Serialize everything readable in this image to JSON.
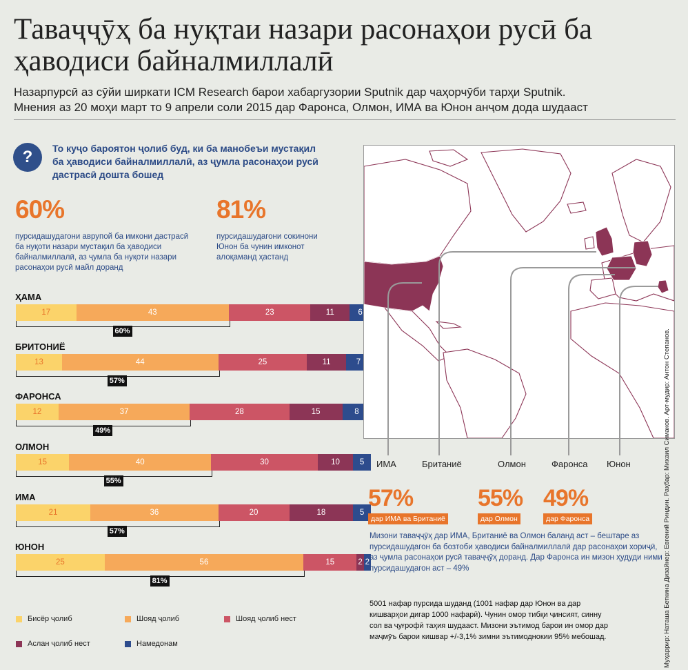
{
  "title": "Таваҷҷӯҳ ба нуқтаи назари расонаҳои русӣ ба ҳаводиси байналмиллалӣ",
  "subtitle_line1": "Назарпурсӣ аз сӯйи ширкати ICM Research барои хабаргузории Sputnik дар чаҳорчӯби тарҳи Sputnik.",
  "subtitle_line2": "Мнения аз 20 моҳи март то 9 апрели соли 2015 дар Фаронса, Олмон, ИМА ва Юнон анҷом дода шудааст",
  "question": {
    "icon": "question-mark-icon",
    "symbol": "?",
    "text": "То куҷо бароятон ҷолиб буд, ки ба манобеъи мустақил ба ҳаводиси байналмиллалӣ, аз ҷумла расонаҳои русӣ дастрасӣ дошта бошед"
  },
  "highlights": [
    {
      "value": "60%",
      "text": "пурсидашудагони аврупой ба имкони дастрасӣ ба нуқоти назари мустақил ба ҳаводиси байналмиллалӣ, аз ҷумла ба нуқоти назари расонаҳои русӣ  майл доранд"
    },
    {
      "value": "81%",
      "text": "пурсидашудагони сокинони Юнон ба чунин имконот алоқаманд ҳастанд"
    }
  ],
  "colors": {
    "very": "#fbd36a",
    "rather": "#f6a95a",
    "rather_not": "#cc5565",
    "not_at_all": "#8c3556",
    "dont_know": "#2d4c8d",
    "accent": "#e8752b",
    "blue_text": "#2b4a86"
  },
  "chart_data": {
    "type": "bar",
    "orientation": "horizontal",
    "stacked": true,
    "categories": [
      "ҲАМА",
      "БРИТОНИЁ",
      "ФАРОНСА",
      "ОЛМОН",
      "ИМА",
      "ЮНОН"
    ],
    "series": [
      {
        "name": "Бисёр ҷолиб",
        "key": "very",
        "values": [
          17,
          13,
          12,
          15,
          21,
          25
        ]
      },
      {
        "name": "Шояд ҷолиб",
        "key": "rather",
        "values": [
          43,
          44,
          37,
          40,
          36,
          56
        ]
      },
      {
        "name": "Шояд ҷолиб нест",
        "key": "rather_not",
        "values": [
          23,
          25,
          28,
          30,
          20,
          15
        ]
      },
      {
        "name": "Аслан ҷолиб нест",
        "key": "not_at_all",
        "values": [
          11,
          11,
          15,
          10,
          18,
          2
        ]
      },
      {
        "name": "Намедонам",
        "key": "dont_know",
        "values": [
          6,
          7,
          8,
          5,
          5,
          2
        ]
      }
    ],
    "interested_totals": [
      "60%",
      "57%",
      "49%",
      "55%",
      "57%",
      "81%"
    ]
  },
  "legend_order": [
    "very",
    "rather",
    "rather_not",
    "not_at_all",
    "dont_know"
  ],
  "map": {
    "labels": [
      "ИМА",
      "Британиё",
      "Олмон",
      "Фаронса",
      "Юнон"
    ],
    "highlighted_regions": [
      "USA",
      "UK",
      "Germany",
      "France",
      "Greece"
    ],
    "highlight_color": "#8c3556",
    "stats": [
      {
        "value": "57%",
        "caption": "дар ИМА ва Британиё"
      },
      {
        "value": "55%",
        "caption": "дар Олмон"
      },
      {
        "value": "49%",
        "caption": "дар Фаронса"
      }
    ],
    "note": "Мизони таваҷҷӯҳ дар ИМА, Британиё ва Олмон баланд аст – бештаре аз пурсидашудагон ба бозтоби ҳаводиси байналмиллалӣ дар расонаҳои хориҷӣ, аз ҷумла расонаҳои русӣ таваҷҷӯҳ доранд. Дар Фаронса ин мизон ҳудуди ними пурсидашудагон аст – 49%"
  },
  "methodology": "5001 нафар пурсида шуданд (1001 нафар дар Юнон ва дар кишварҳои дигар 1000 нафарӣ). Чунин омор тибқи ҷинсият, синну сол ва ҷуғрофӣ таҳия шудааст. Мизони эътимод барои ин омор дар маҷмӯъ барои кишвар +/-3,1% зимни эътимоднокии 95% мебошад.",
  "credits": "Муҳаррир: Наташа Беткина   Дизайнер: Евгений Риндин. Раҳбар: Михаил Симаков.  Арт-мудир: Антон Степанов."
}
